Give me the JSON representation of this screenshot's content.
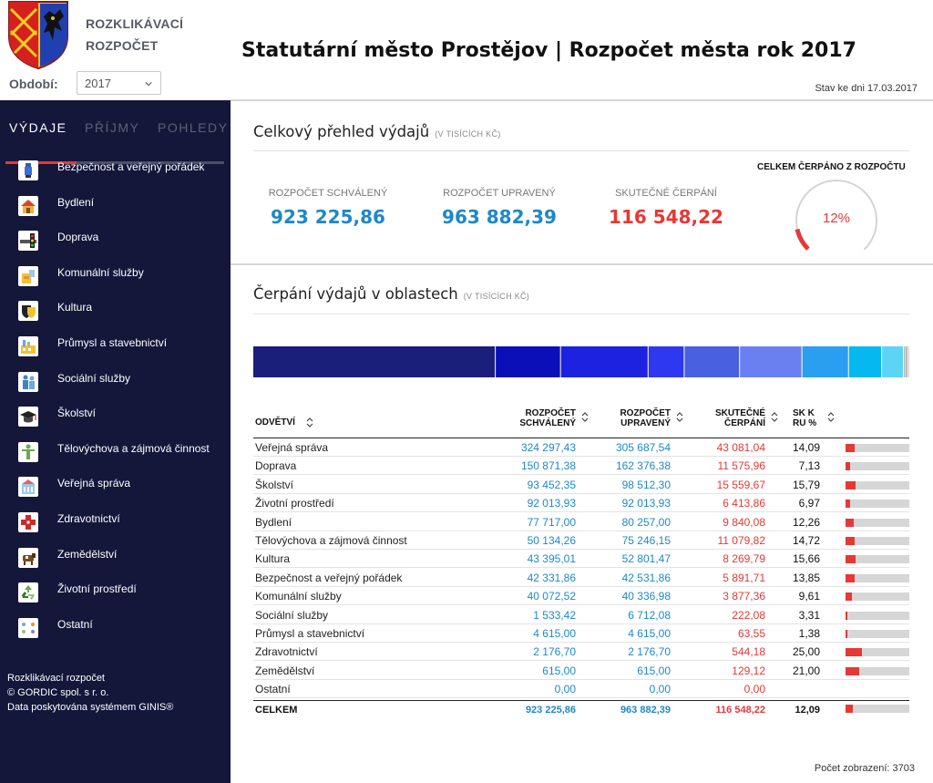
{
  "brand": {
    "line1": "ROZKLIKÁVACÍ",
    "line2": "ROZPOČET"
  },
  "period": {
    "label": "Období:",
    "value": "2017"
  },
  "sidebar": {
    "tabs": [
      {
        "label": "VÝDAJE"
      },
      {
        "label": "PŘÍJMY"
      },
      {
        "label": "POHLEDY"
      }
    ],
    "items": [
      {
        "label": "Bezpečnost a veřejný pořádek",
        "icon": "police-icon"
      },
      {
        "label": "Bydlení",
        "icon": "house-icon"
      },
      {
        "label": "Doprava",
        "icon": "traffic-light-icon"
      },
      {
        "label": "Komunální služby",
        "icon": "utility-icon"
      },
      {
        "label": "Kultura",
        "icon": "theatre-mask-icon"
      },
      {
        "label": "Průmysl a stavebnictví",
        "icon": "factory-icon"
      },
      {
        "label": "Sociální služby",
        "icon": "people-icon"
      },
      {
        "label": "Školství",
        "icon": "graduation-cap-icon"
      },
      {
        "label": "Tělovýchova a zájmová činnost",
        "icon": "athlete-icon"
      },
      {
        "label": "Veřejná správa",
        "icon": "building-icon"
      },
      {
        "label": "Zdravotnictví",
        "icon": "medical-cross-icon"
      },
      {
        "label": "Zemědělství",
        "icon": "cow-icon"
      },
      {
        "label": "Životní prostředí",
        "icon": "recycle-icon"
      },
      {
        "label": "Ostatní",
        "icon": "dots-icon"
      }
    ],
    "footer": {
      "line1": "Rozklikávací rozpočet",
      "line2": "© GORDIC spol. s r. o.",
      "line3": "Data poskytována systémem GINIS®"
    }
  },
  "header": {
    "title": "Statutární město Prostějov | Rozpočet města rok 2017",
    "status": "Stav ke dni 17.03.2017"
  },
  "overview": {
    "title": "Celkový přehled výdajů",
    "unit": "(V TISÍCÍCH KČ)",
    "approved_label": "ROZPOČET SCHVÁLENÝ",
    "approved_value": "923 225,86",
    "modified_label": "ROZPOČET UPRAVENÝ",
    "modified_value": "963 882,39",
    "actual_label": "SKUTEČNÉ ČERPÁNÍ",
    "actual_value": "116 548,22",
    "total_label": "CELKEM ČERPÁNO Z ROZPOČTU",
    "total_pct_text": "12%",
    "total_pct": 12.09
  },
  "areas": {
    "title": "Čerpání výdajů v oblastech",
    "unit": "(V TISÍCÍCH KČ)"
  },
  "colors": {
    "accent_red": "#e53935",
    "value_blue": "#1e88c8",
    "sidebar_bg": "#14173a",
    "stack": [
      "#1a1f7a",
      "#0a0fb8",
      "#1c22e0",
      "#2d38f0",
      "#4960e0",
      "#6a80f2",
      "#2a9ef0",
      "#06b8f0",
      "#5cd4f6",
      "#8a8a8a",
      "#bbbbbb"
    ]
  },
  "table": {
    "headers": {
      "col1": "ODVĚTVÍ",
      "col2_l1": "ROZPOČET",
      "col2_l2": "SCHVÁLENÝ",
      "col3_l1": "ROZPOČET",
      "col3_l2": "UPRAVENÝ",
      "col4_l1": "SKUTEČNÉ",
      "col4_l2": "ČERPÁNÍ",
      "col5_l1": "SK K",
      "col5_l2": "RU %"
    },
    "rows": [
      {
        "name": "Veřejná správa",
        "approved": "324 297,43",
        "modified": "305 687,54",
        "actual": "43 081,04",
        "pct": "14,09",
        "pct_value": 14.09
      },
      {
        "name": "Doprava",
        "approved": "150 871,38",
        "modified": "162 376,38",
        "actual": "11 575,96",
        "pct": "7,13",
        "pct_value": 7.13
      },
      {
        "name": "Školství",
        "approved": "93 452,35",
        "modified": "98 512,30",
        "actual": "15 559,67",
        "pct": "15,79",
        "pct_value": 15.79
      },
      {
        "name": "Životní prostředí",
        "approved": "92 013,93",
        "modified": "92 013,93",
        "actual": "6 413,86",
        "pct": "6,97",
        "pct_value": 6.97
      },
      {
        "name": "Bydlení",
        "approved": "77 717,00",
        "modified": "80 257,00",
        "actual": "9 840,08",
        "pct": "12,26",
        "pct_value": 12.26
      },
      {
        "name": "Tělovýchova a zájmová činnost",
        "approved": "50 134,26",
        "modified": "75 246,15",
        "actual": "11 079,82",
        "pct": "14,72",
        "pct_value": 14.72
      },
      {
        "name": "Kultura",
        "approved": "43 395,01",
        "modified": "52 801,47",
        "actual": "8 269,79",
        "pct": "15,66",
        "pct_value": 15.66
      },
      {
        "name": "Bezpečnost a veřejný pořádek",
        "approved": "42 331,86",
        "modified": "42 531,86",
        "actual": "5 891,71",
        "pct": "13,85",
        "pct_value": 13.85
      },
      {
        "name": "Komunální služby",
        "approved": "40 072,52",
        "modified": "40 336,98",
        "actual": "3 877,36",
        "pct": "9,61",
        "pct_value": 9.61
      },
      {
        "name": "Sociální služby",
        "approved": "1 533,42",
        "modified": "6 712,08",
        "actual": "222,08",
        "pct": "3,31",
        "pct_value": 3.31
      },
      {
        "name": "Průmysl a stavebnictví",
        "approved": "4 615,00",
        "modified": "4 615,00",
        "actual": "63,55",
        "pct": "1,38",
        "pct_value": 1.38
      },
      {
        "name": "Zdravotnictví",
        "approved": "2 176,70",
        "modified": "2 176,70",
        "actual": "544,18",
        "pct": "25,00",
        "pct_value": 25.0
      },
      {
        "name": "Zemědělství",
        "approved": "615,00",
        "modified": "615,00",
        "actual": "129,12",
        "pct": "21,00",
        "pct_value": 21.0
      },
      {
        "name": "Ostatní",
        "approved": "0,00",
        "modified": "0,00",
        "actual": "0,00",
        "pct": "",
        "pct_value": null
      }
    ],
    "total": {
      "name": "CELKEM",
      "approved": "923 225,86",
      "modified": "963 882,39",
      "actual": "116 548,22",
      "pct": "12,09",
      "pct_value": 12.09
    }
  },
  "footer": {
    "views": "Počet zobrazení: 3703"
  }
}
